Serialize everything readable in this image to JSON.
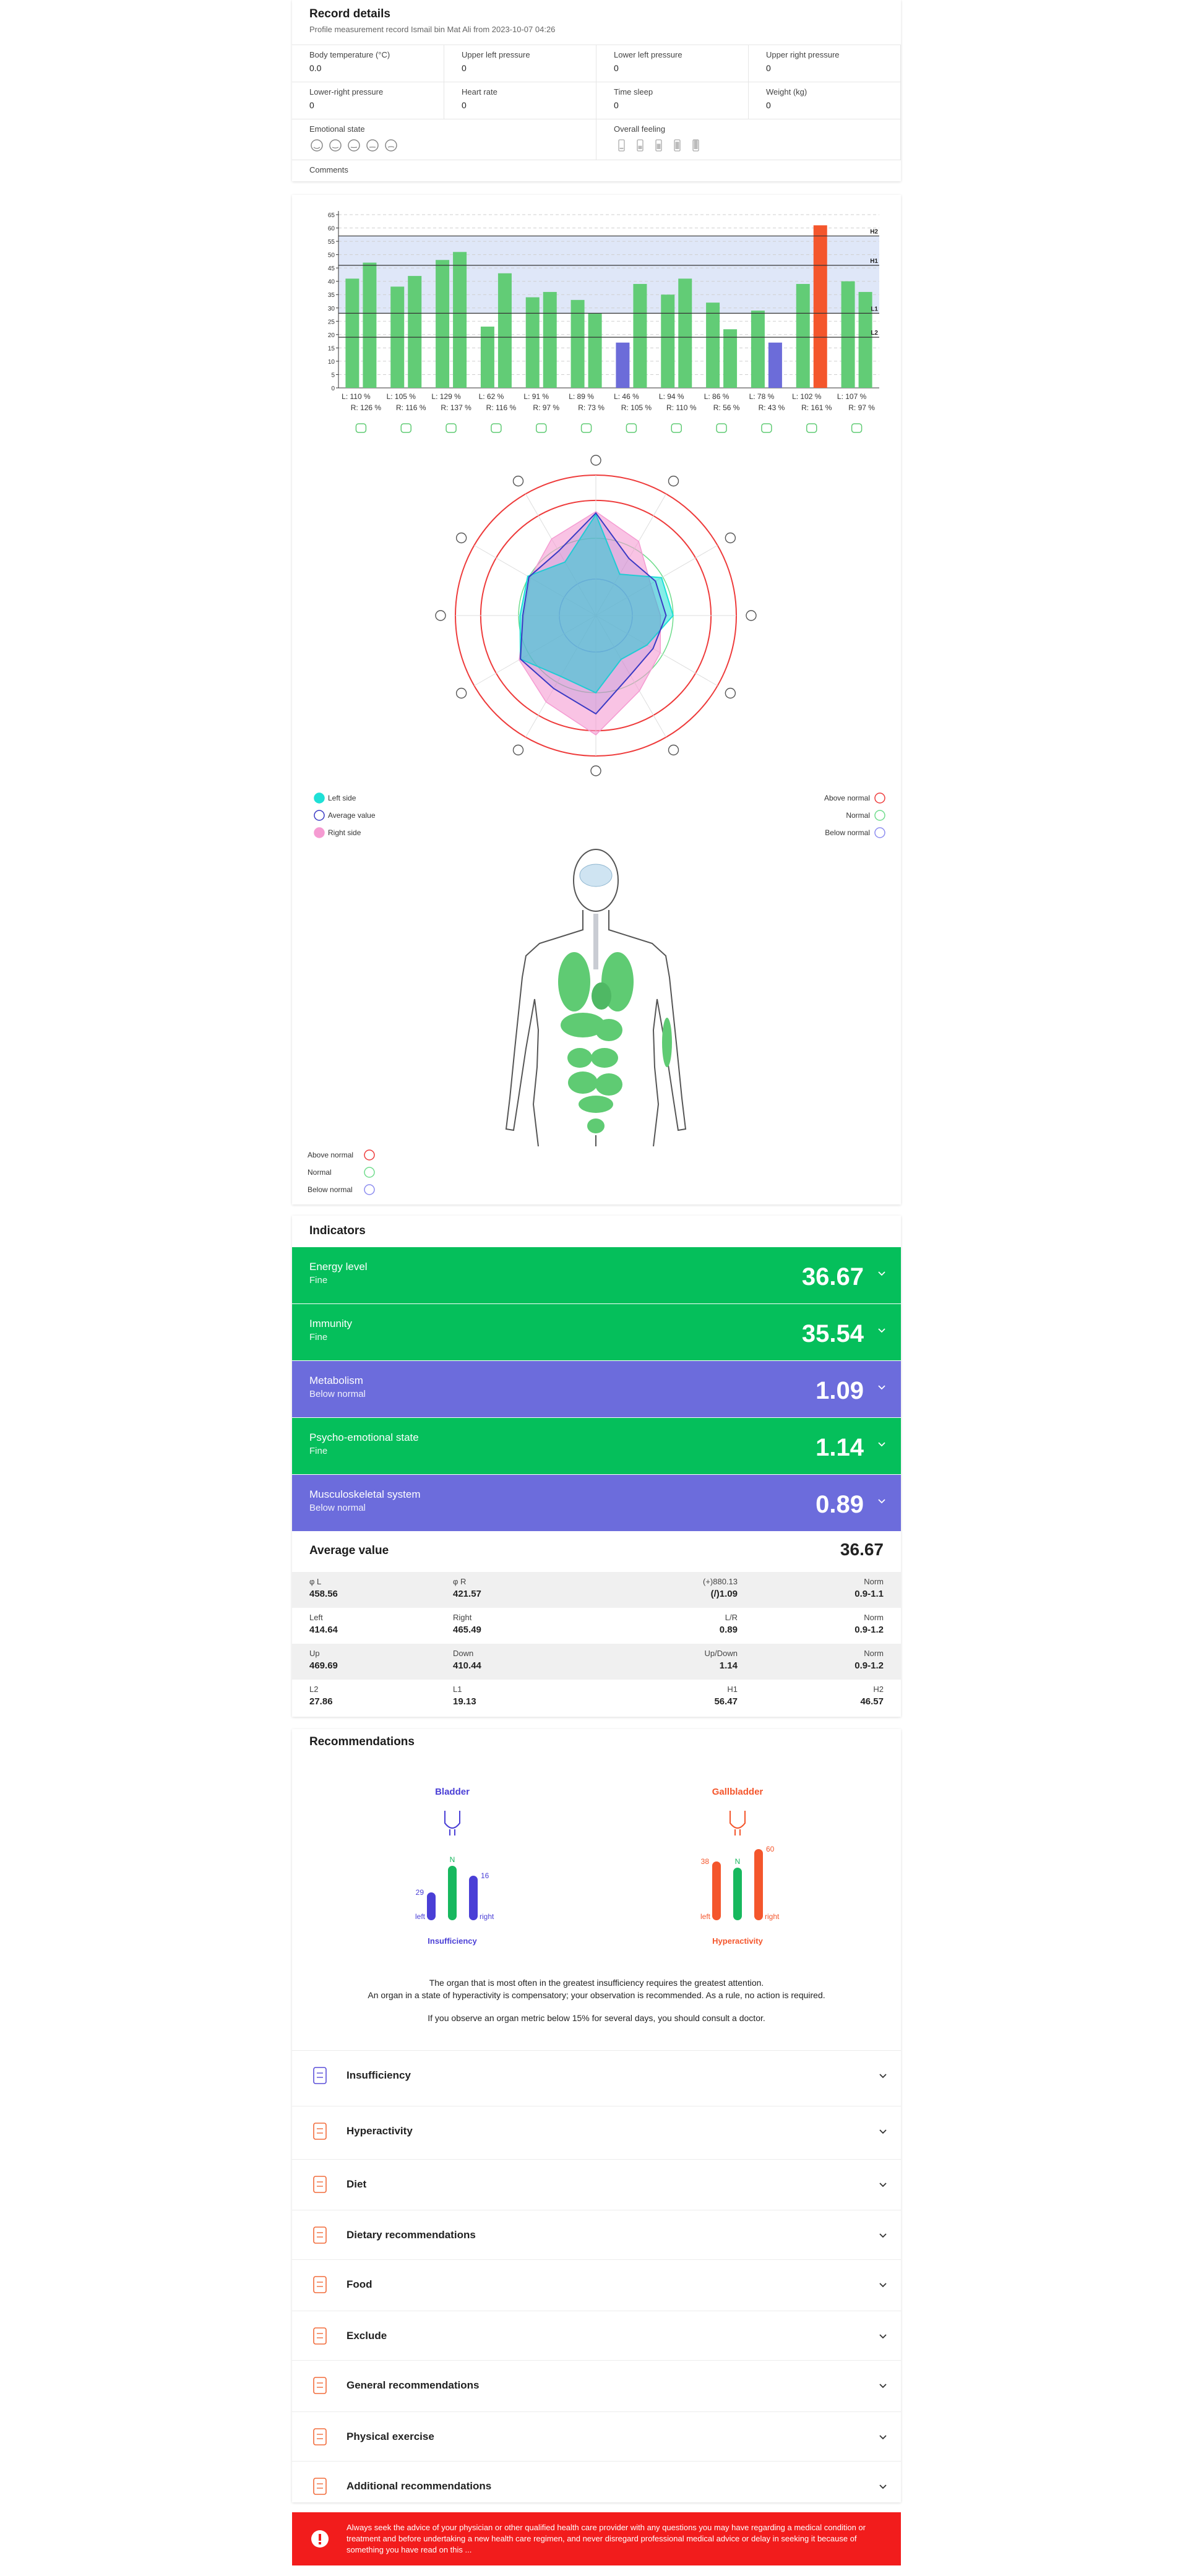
{
  "record": {
    "title": "Record details",
    "subtitle": "Profile measurement record Ismail bin Mat Ali from 2023-10-07 04:26",
    "fields": [
      {
        "label": "Body temperature (°C)",
        "value": "0.0"
      },
      {
        "label": "Upper left pressure",
        "value": "0"
      },
      {
        "label": "Lower left pressure",
        "value": "0"
      },
      {
        "label": "Upper right pressure",
        "value": "0"
      },
      {
        "label": "Lower-right pressure",
        "value": "0"
      },
      {
        "label": "Heart rate",
        "value": "0"
      },
      {
        "label": "Time sleep",
        "value": "0"
      },
      {
        "label": "Weight (kg)",
        "value": "0"
      }
    ],
    "emotional_state": "Emotional state",
    "overall_feeling": "Overall feeling",
    "comments": "Comments"
  },
  "chart_data": [
    {
      "type": "bar",
      "ylim": [
        0,
        65
      ],
      "yticks": [
        0,
        5,
        10,
        15,
        20,
        25,
        30,
        35,
        40,
        45,
        50,
        55,
        60,
        65
      ],
      "grid": true,
      "series": [
        {
          "color": "#62cc76",
          "values": [
            41,
            38,
            48,
            23,
            34,
            33,
            17,
            35,
            32,
            29,
            39,
            40
          ]
        },
        {
          "color": "#62cc76",
          "values": [
            47,
            42,
            51,
            43,
            36,
            28,
            39,
            41,
            22,
            17,
            61,
            36
          ]
        }
      ],
      "above_color": "#f4562c",
      "below_color": "#6c6cd9",
      "band_color": "#dfe7f8",
      "ref_lines": [
        {
          "label": "H2",
          "value": 57
        },
        {
          "label": "H1",
          "value": 46
        },
        {
          "label": "L1",
          "value": 28
        },
        {
          "label": "L2",
          "value": 19
        }
      ],
      "x_labels": {
        "left": [
          "L: 110 %",
          "L: 105 %",
          "L: 129 %",
          "L: 62 %",
          "L: 91 %",
          "L: 89 %",
          "L: 46 %",
          "L: 94 %",
          "L: 86 %",
          "L: 78 %",
          "L: 102 %",
          "L: 107 %"
        ],
        "right": [
          "R: 126 %",
          "R: 116 %",
          "R: 137 %",
          "R: 116 %",
          "R: 97 %",
          "R: 73 %",
          "R: 105 %",
          "R: 110 %",
          "R: 56 %",
          "R: 43 %",
          "R: 161 %",
          "R: 97 %"
        ]
      }
    },
    {
      "type": "radar",
      "rlim": [
        0,
        100
      ],
      "series": [
        {
          "name": "Left side",
          "color": "#1fe0d6",
          "values": [
            72,
            34,
            54,
            55,
            42,
            36,
            55,
            50,
            62,
            54,
            56,
            44
          ]
        },
        {
          "name": "Average value",
          "color": "#3a3ac4",
          "values": [
            73,
            47,
            49,
            50,
            47,
            49,
            70,
            60,
            62,
            52,
            55,
            53
          ]
        },
        {
          "name": "Right side",
          "color": "#f59bd2",
          "values": [
            74,
            61,
            45,
            46,
            53,
            62,
            85,
            71,
            63,
            51,
            54,
            63
          ]
        }
      ],
      "rings": [
        {
          "label": "Above normal",
          "color": "#ee3b3b"
        },
        {
          "label": "Normal",
          "color": "#6fdc8c"
        },
        {
          "label": "Below normal",
          "color": "#8c8cf0"
        }
      ]
    }
  ],
  "body_legend": [
    {
      "label": "Above normal",
      "color": "#ee3b3b"
    },
    {
      "label": "Normal",
      "color": "#6fdc8c"
    },
    {
      "label": "Below normal",
      "color": "#8c8cf0"
    }
  ],
  "indicators": {
    "title": "Indicators",
    "items": [
      {
        "name": "Energy level",
        "status": "Fine",
        "value": "36.67",
        "color": "#05bf5b"
      },
      {
        "name": "Immunity",
        "status": "Fine",
        "value": "35.54",
        "color": "#05bf5b"
      },
      {
        "name": "Metabolism",
        "status": "Below normal",
        "value": "1.09",
        "color": "#6c6cdc"
      },
      {
        "name": "Psycho-emotional state",
        "status": "Fine",
        "value": "1.14",
        "color": "#05bf5b"
      },
      {
        "name": "Musculoskeletal system",
        "status": "Below normal",
        "value": "0.89",
        "color": "#6c6cdc"
      }
    ],
    "average": {
      "label": "Average value",
      "value": "36.67"
    },
    "table": [
      [
        [
          "φ L",
          "458.56"
        ],
        [
          "φ R",
          "421.57"
        ],
        [
          "(+)880.13",
          "(/)1.09"
        ],
        [
          "Norm",
          "0.9-1.1"
        ]
      ],
      [
        [
          "Left",
          "414.64"
        ],
        [
          "Right",
          "465.49"
        ],
        [
          "L/R",
          "0.89"
        ],
        [
          "Norm",
          "0.9-1.2"
        ]
      ],
      [
        [
          "Up",
          "469.69"
        ],
        [
          "Down",
          "410.44"
        ],
        [
          "Up/Down",
          "1.14"
        ],
        [
          "Norm",
          "0.9-1.2"
        ]
      ],
      [
        [
          "L2",
          "27.86"
        ],
        [
          "L1",
          "19.13"
        ],
        [
          "H1",
          "56.47"
        ],
        [
          "H2",
          "46.57"
        ]
      ]
    ]
  },
  "recommendations": {
    "title": "Recommendations",
    "organs": [
      {
        "name": "Bladder",
        "color": "#4a3fd6",
        "left": "29",
        "n": "N",
        "right": "16",
        "left_label": "left",
        "right_label": "right",
        "state": "Insufficiency"
      },
      {
        "name": "Gallbladder",
        "color": "#f4562c",
        "left": "38",
        "n": "N",
        "right": "60",
        "left_label": "left",
        "right_label": "right",
        "state": "Hyperactivity"
      }
    ],
    "notes": [
      "The organ that is most often in the greatest insufficiency requires the greatest attention.",
      "An organ in a state of hyperactivity is compensatory; your observation is recommended. As a rule, no action is required.",
      "If you observe an organ metric below 15% for several days, you should consult a doctor."
    ],
    "sections": [
      "Insufficiency",
      "Hyperactivity",
      "Diet",
      "Dietary recommendations",
      "Food",
      "Exclude",
      "General recommendations",
      "Physical exercise",
      "Additional recommendations"
    ]
  },
  "disclaimer": "Always seek the advice of your physician or other qualified health care provider with any questions you may have regarding a medical condition or treatment and before undertaking a new health care regimen, and never disregard professional medical advice or delay in seeking it because of something you have read on this ..."
}
